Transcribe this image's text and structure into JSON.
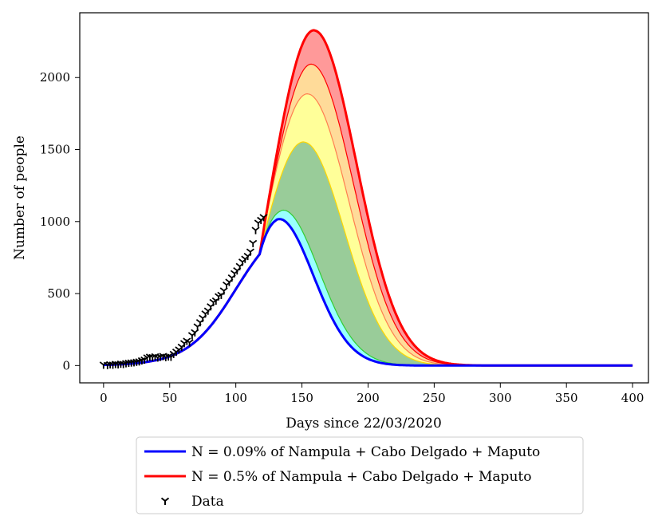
{
  "chart_data": {
    "type": "line",
    "title": "",
    "xlabel": "Days since 22/03/2020",
    "ylabel": "Number of people",
    "xlim": [
      -18,
      412
    ],
    "ylim": [
      -120,
      2450
    ],
    "xticks": [
      0,
      50,
      100,
      150,
      200,
      250,
      300,
      350,
      400
    ],
    "yticks": [
      0,
      500,
      1000,
      1500,
      2000
    ],
    "grid": false,
    "legend_position": "bottom-center, outside plot",
    "colors": {
      "blue_curve": "#0000ff",
      "red_curve": "#ff0000",
      "data_marker": "#000000",
      "bands": [
        "#00ffff",
        "#008000",
        "#ffff00",
        "#ffa500",
        "#ff0000"
      ],
      "band_edges": [
        "#20b2aa",
        "#32cd32",
        "#ffd700",
        "#ff7f50",
        "#ff0000"
      ]
    },
    "series": [
      {
        "name": "N = 0.09% of Nampula + Cabo Delgado + Maputo",
        "color": "#0000ff",
        "style": "line",
        "peak_day": 130,
        "peak_value": 1060
      },
      {
        "name": "N = 0.5% of Nampula + Cabo Delgado + Maputo",
        "color": "#ff0000",
        "style": "line",
        "peak_day": 159,
        "peak_value": 2330
      },
      {
        "name": "Data",
        "color": "#000000",
        "style": "marker"
      }
    ],
    "intermediate_curves": [
      {
        "peak_day": 134,
        "peak_value": 1105
      },
      {
        "peak_day": 151,
        "peak_value": 1555
      },
      {
        "peak_day": 154,
        "peak_value": 1890
      },
      {
        "peak_day": 157,
        "peak_value": 2095
      }
    ],
    "data_points": {
      "x": [
        0,
        3,
        5,
        7,
        9,
        11,
        13,
        15,
        17,
        19,
        21,
        23,
        25,
        27,
        29,
        31,
        33,
        35,
        37,
        39,
        41,
        43,
        45,
        47,
        49,
        51,
        53,
        55,
        57,
        59,
        61,
        63,
        65,
        67,
        69,
        71,
        73,
        75,
        77,
        79,
        81,
        83,
        85,
        87,
        89,
        91,
        93,
        95,
        97,
        99,
        101,
        103,
        105,
        107,
        109,
        111,
        113,
        115,
        117,
        119,
        121
      ],
      "y": [
        5,
        3,
        8,
        5,
        10,
        8,
        12,
        10,
        15,
        18,
        20,
        22,
        25,
        28,
        35,
        40,
        55,
        60,
        58,
        62,
        55,
        60,
        65,
        58,
        62,
        60,
        80,
        95,
        110,
        130,
        155,
        170,
        160,
        210,
        230,
        270,
        300,
        330,
        360,
        380,
        410,
        440,
        450,
        480,
        490,
        520,
        560,
        580,
        610,
        640,
        660,
        690,
        720,
        740,
        760,
        790,
        850,
        940,
        990,
        1010,
        1030
      ]
    },
    "legend": [
      {
        "label": "N = 0.09% of Nampula + Cabo Delgado + Maputo",
        "color": "#0000ff",
        "kind": "line"
      },
      {
        "label": "N = 0.5% of Nampula + Cabo Delgado + Maputo",
        "color": "#ff0000",
        "kind": "line"
      },
      {
        "label": "Data",
        "color": "#000000",
        "kind": "marker"
      }
    ]
  }
}
